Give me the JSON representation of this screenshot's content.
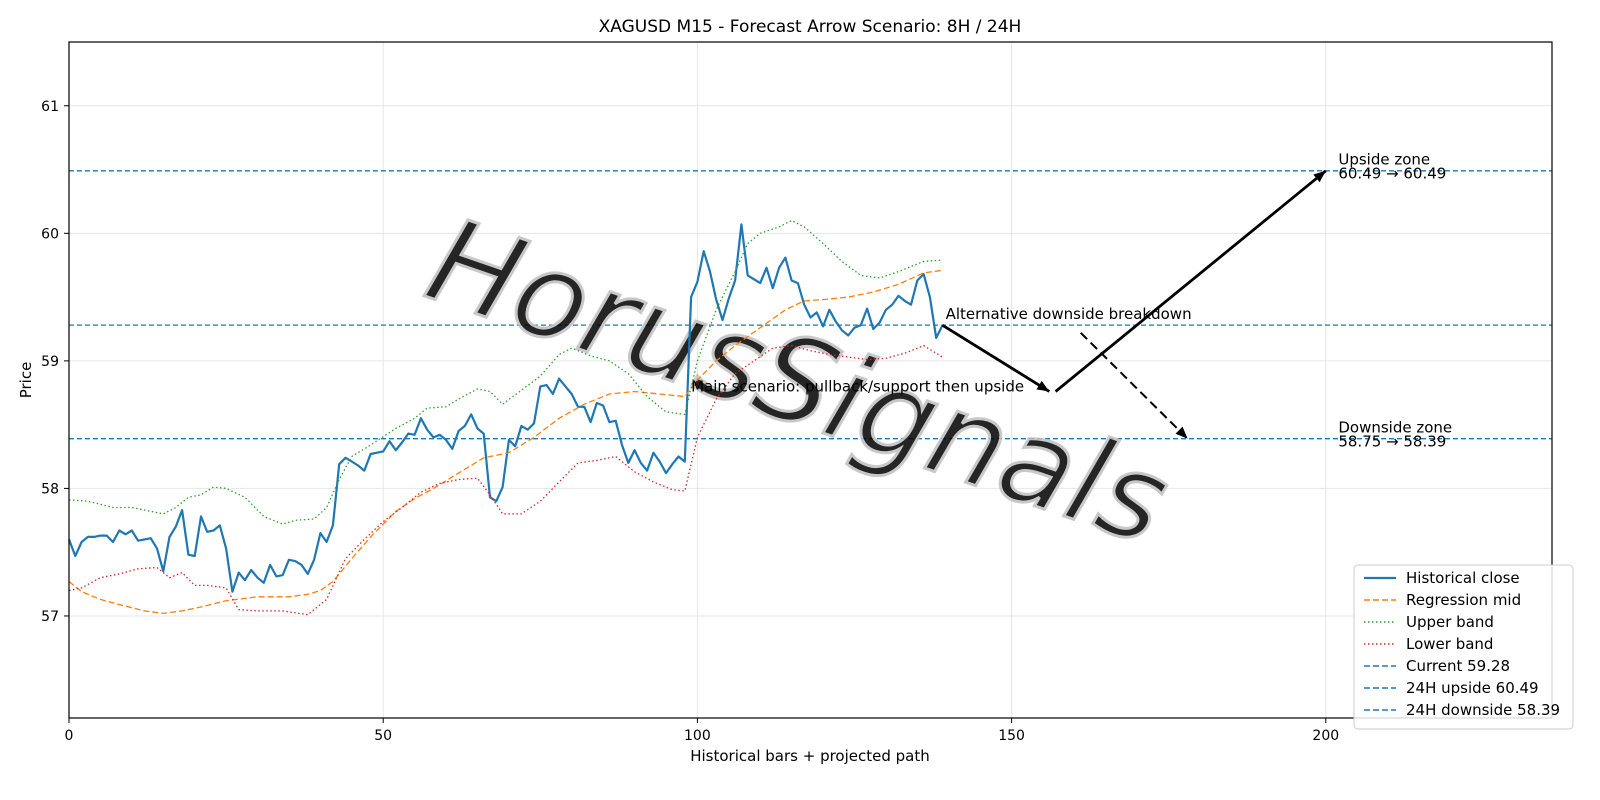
{
  "chart_data": {
    "type": "line",
    "title": "XAGUSD M15 - Forecast Arrow Scenario: 8H / 24H",
    "xlabel": "Historical bars + projected path",
    "ylabel": "Price",
    "xlim": [
      0,
      236
    ],
    "ylim": [
      56.2,
      61.5
    ],
    "xticks": [
      0,
      50,
      100,
      150,
      200
    ],
    "yticks": [
      57,
      58,
      59,
      60,
      61
    ],
    "grid": true,
    "watermark": "HorusSignals",
    "legend_position": "lower-right",
    "colors": {
      "close": "#1f77b4",
      "mid": "#ff7f0e",
      "upper": "#2ca02c",
      "lower": "#d62728",
      "hline": "#1f77b4",
      "arrow": "#000000"
    },
    "series": [
      {
        "name": "Historical close",
        "style": "solid",
        "points": [
          [
            0,
            57.6
          ],
          [
            1,
            57.47
          ],
          [
            2,
            57.58
          ],
          [
            3,
            57.62
          ],
          [
            4,
            57.62
          ],
          [
            5,
            57.63
          ],
          [
            6,
            57.63
          ],
          [
            7,
            57.58
          ],
          [
            8,
            57.67
          ],
          [
            9,
            57.64
          ],
          [
            10,
            57.67
          ],
          [
            11,
            57.59
          ],
          [
            12,
            57.6
          ],
          [
            13,
            57.61
          ],
          [
            14,
            57.53
          ],
          [
            15,
            57.35
          ],
          [
            16,
            57.62
          ],
          [
            17,
            57.7
          ],
          [
            18,
            57.83
          ],
          [
            19,
            57.48
          ],
          [
            20,
            57.47
          ],
          [
            21,
            57.78
          ],
          [
            22,
            57.66
          ],
          [
            23,
            57.67
          ],
          [
            24,
            57.71
          ],
          [
            25,
            57.53
          ],
          [
            26,
            57.19
          ],
          [
            27,
            57.34
          ],
          [
            28,
            57.28
          ],
          [
            29,
            57.36
          ],
          [
            30,
            57.3
          ],
          [
            31,
            57.26
          ],
          [
            32,
            57.4
          ],
          [
            33,
            57.31
          ],
          [
            34,
            57.32
          ],
          [
            35,
            57.44
          ],
          [
            36,
            57.43
          ],
          [
            37,
            57.4
          ],
          [
            38,
            57.33
          ],
          [
            39,
            57.44
          ],
          [
            40,
            57.65
          ],
          [
            41,
            57.58
          ],
          [
            42,
            57.71
          ],
          [
            43,
            58.19
          ],
          [
            44,
            58.24
          ],
          [
            45,
            58.21
          ],
          [
            46,
            58.18
          ],
          [
            47,
            58.14
          ],
          [
            48,
            58.27
          ],
          [
            49,
            58.28
          ],
          [
            50,
            58.29
          ],
          [
            51,
            58.37
          ],
          [
            52,
            58.3
          ],
          [
            53,
            58.36
          ],
          [
            54,
            58.43
          ],
          [
            55,
            58.42
          ],
          [
            56,
            58.55
          ],
          [
            57,
            58.46
          ],
          [
            58,
            58.4
          ],
          [
            59,
            58.42
          ],
          [
            60,
            58.38
          ],
          [
            61,
            58.31
          ],
          [
            62,
            58.45
          ],
          [
            63,
            58.49
          ],
          [
            64,
            58.58
          ],
          [
            65,
            58.47
          ],
          [
            66,
            58.43
          ],
          [
            67,
            57.93
          ],
          [
            68,
            57.9
          ],
          [
            69,
            58.01
          ],
          [
            70,
            58.38
          ],
          [
            71,
            58.33
          ],
          [
            72,
            58.49
          ],
          [
            73,
            58.46
          ],
          [
            74,
            58.51
          ],
          [
            75,
            58.8
          ],
          [
            76,
            58.81
          ],
          [
            77,
            58.74
          ],
          [
            78,
            58.86
          ],
          [
            79,
            58.8
          ],
          [
            80,
            58.74
          ],
          [
            81,
            58.64
          ],
          [
            82,
            58.64
          ],
          [
            83,
            58.52
          ],
          [
            84,
            58.67
          ],
          [
            85,
            58.65
          ],
          [
            86,
            58.52
          ],
          [
            87,
            58.53
          ],
          [
            88,
            58.34
          ],
          [
            89,
            58.2
          ],
          [
            90,
            58.3
          ],
          [
            91,
            58.2
          ],
          [
            92,
            58.14
          ],
          [
            93,
            58.28
          ],
          [
            94,
            58.21
          ],
          [
            95,
            58.12
          ],
          [
            96,
            58.19
          ],
          [
            97,
            58.25
          ],
          [
            98,
            58.21
          ],
          [
            99,
            59.5
          ],
          [
            100,
            59.62
          ],
          [
            101,
            59.86
          ],
          [
            102,
            59.7
          ],
          [
            103,
            59.48
          ],
          [
            104,
            59.32
          ],
          [
            105,
            59.49
          ],
          [
            106,
            59.63
          ],
          [
            107,
            60.07
          ],
          [
            108,
            59.67
          ],
          [
            109,
            59.64
          ],
          [
            110,
            59.61
          ],
          [
            111,
            59.73
          ],
          [
            112,
            59.57
          ],
          [
            113,
            59.73
          ],
          [
            114,
            59.81
          ],
          [
            115,
            59.63
          ],
          [
            116,
            59.61
          ],
          [
            117,
            59.44
          ],
          [
            118,
            59.34
          ],
          [
            119,
            59.38
          ],
          [
            120,
            59.27
          ],
          [
            121,
            59.4
          ],
          [
            122,
            59.31
          ],
          [
            123,
            59.24
          ],
          [
            124,
            59.2
          ],
          [
            125,
            59.26
          ],
          [
            126,
            59.28
          ],
          [
            127,
            59.41
          ],
          [
            128,
            59.25
          ],
          [
            129,
            59.3
          ],
          [
            130,
            59.4
          ],
          [
            131,
            59.44
          ],
          [
            132,
            59.51
          ],
          [
            133,
            59.47
          ],
          [
            134,
            59.44
          ],
          [
            135,
            59.63
          ],
          [
            136,
            59.68
          ],
          [
            137,
            59.5
          ],
          [
            138,
            59.18
          ],
          [
            139,
            59.28
          ]
        ]
      },
      {
        "name": "Regression mid",
        "style": "dashed",
        "points": [
          [
            0,
            57.27
          ],
          [
            2,
            57.19
          ],
          [
            5,
            57.13
          ],
          [
            8,
            57.09
          ],
          [
            12,
            57.04
          ],
          [
            15,
            57.02
          ],
          [
            18,
            57.04
          ],
          [
            21,
            57.07
          ],
          [
            25,
            57.12
          ],
          [
            30,
            57.15
          ],
          [
            35,
            57.15
          ],
          [
            38,
            57.17
          ],
          [
            40,
            57.2
          ],
          [
            42,
            57.27
          ],
          [
            45,
            57.45
          ],
          [
            48,
            57.62
          ],
          [
            52,
            57.82
          ],
          [
            55,
            57.92
          ],
          [
            58,
            58.0
          ],
          [
            62,
            58.12
          ],
          [
            66,
            58.24
          ],
          [
            70,
            58.28
          ],
          [
            74,
            58.4
          ],
          [
            78,
            58.55
          ],
          [
            82,
            58.66
          ],
          [
            86,
            58.74
          ],
          [
            90,
            58.76
          ],
          [
            94,
            58.74
          ],
          [
            98,
            58.72
          ],
          [
            100,
            58.85
          ],
          [
            103,
            59.0
          ],
          [
            106,
            59.12
          ],
          [
            110,
            59.26
          ],
          [
            114,
            59.4
          ],
          [
            117,
            59.47
          ],
          [
            120,
            59.48
          ],
          [
            124,
            59.5
          ],
          [
            128,
            59.54
          ],
          [
            132,
            59.6
          ],
          [
            136,
            59.69
          ],
          [
            139,
            59.71
          ]
        ]
      },
      {
        "name": "Upper band",
        "style": "dotted",
        "points": [
          [
            0,
            57.91
          ],
          [
            3,
            57.9
          ],
          [
            7,
            57.85
          ],
          [
            10,
            57.85
          ],
          [
            15,
            57.8
          ],
          [
            17,
            57.85
          ],
          [
            19,
            57.93
          ],
          [
            21,
            57.95
          ],
          [
            23,
            58.01
          ],
          [
            25,
            58.0
          ],
          [
            28,
            57.93
          ],
          [
            31,
            57.78
          ],
          [
            34,
            57.72
          ],
          [
            36,
            57.75
          ],
          [
            39,
            57.76
          ],
          [
            41,
            57.85
          ],
          [
            43,
            58.07
          ],
          [
            45,
            58.25
          ],
          [
            48,
            58.34
          ],
          [
            52,
            58.47
          ],
          [
            55,
            58.55
          ],
          [
            57,
            58.63
          ],
          [
            60,
            58.64
          ],
          [
            62,
            58.7
          ],
          [
            65,
            58.78
          ],
          [
            67,
            58.76
          ],
          [
            69,
            58.66
          ],
          [
            72,
            58.77
          ],
          [
            75,
            58.88
          ],
          [
            78,
            59.05
          ],
          [
            80,
            59.1
          ],
          [
            83,
            59.04
          ],
          [
            86,
            59.0
          ],
          [
            89,
            58.9
          ],
          [
            92,
            58.72
          ],
          [
            95,
            58.6
          ],
          [
            98,
            58.58
          ],
          [
            100,
            59.0
          ],
          [
            103,
            59.4
          ],
          [
            106,
            59.7
          ],
          [
            108,
            59.92
          ],
          [
            110,
            60.0
          ],
          [
            113,
            60.05
          ],
          [
            115,
            60.1
          ],
          [
            117,
            60.05
          ],
          [
            120,
            59.92
          ],
          [
            123,
            59.78
          ],
          [
            126,
            59.67
          ],
          [
            129,
            59.65
          ],
          [
            132,
            59.7
          ],
          [
            136,
            59.78
          ],
          [
            139,
            59.79
          ]
        ]
      },
      {
        "name": "Lower band",
        "style": "dotted",
        "points": [
          [
            0,
            57.2
          ],
          [
            2,
            57.22
          ],
          [
            5,
            57.3
          ],
          [
            8,
            57.33
          ],
          [
            11,
            57.37
          ],
          [
            14,
            57.38
          ],
          [
            16,
            57.3
          ],
          [
            18,
            57.34
          ],
          [
            20,
            57.24
          ],
          [
            22,
            57.24
          ],
          [
            25,
            57.22
          ],
          [
            27,
            57.05
          ],
          [
            30,
            57.04
          ],
          [
            34,
            57.04
          ],
          [
            38,
            57.01
          ],
          [
            41,
            57.13
          ],
          [
            44,
            57.45
          ],
          [
            47,
            57.6
          ],
          [
            50,
            57.74
          ],
          [
            53,
            57.85
          ],
          [
            56,
            57.97
          ],
          [
            59,
            58.04
          ],
          [
            62,
            58.07
          ],
          [
            65,
            58.08
          ],
          [
            67,
            57.95
          ],
          [
            69,
            57.8
          ],
          [
            72,
            57.8
          ],
          [
            75,
            57.9
          ],
          [
            78,
            58.05
          ],
          [
            81,
            58.2
          ],
          [
            84,
            58.22
          ],
          [
            87,
            58.25
          ],
          [
            90,
            58.13
          ],
          [
            93,
            58.05
          ],
          [
            96,
            57.99
          ],
          [
            98,
            57.98
          ],
          [
            100,
            58.4
          ],
          [
            103,
            58.7
          ],
          [
            106,
            58.9
          ],
          [
            109,
            59.0
          ],
          [
            112,
            59.1
          ],
          [
            115,
            59.12
          ],
          [
            118,
            59.08
          ],
          [
            121,
            59.05
          ],
          [
            124,
            59.03
          ],
          [
            127,
            59.01
          ],
          [
            130,
            59.02
          ],
          [
            133,
            59.06
          ],
          [
            136,
            59.12
          ],
          [
            139,
            59.03
          ]
        ]
      }
    ],
    "hlines": [
      {
        "name": "Current 59.28",
        "y": 59.28
      },
      {
        "name": "24H upside 60.49",
        "y": 60.49
      },
      {
        "name": "24H downside 58.39",
        "y": 58.39
      }
    ],
    "arrows": [
      {
        "name": "main-1",
        "style": "solid",
        "from": [
          139,
          59.28
        ],
        "to": [
          156,
          58.76
        ]
      },
      {
        "name": "main-2",
        "style": "solid",
        "from": [
          157,
          58.76
        ],
        "to": [
          200,
          60.49
        ]
      },
      {
        "name": "alt",
        "style": "dashed",
        "from": [
          161,
          59.22
        ],
        "to": [
          178,
          58.39
        ]
      }
    ],
    "annotations": [
      {
        "text": "Alternative downside breakdown",
        "x": 139.5,
        "y": 59.33
      },
      {
        "text": "Main scenario: pullback/support then upside",
        "x": 99,
        "y": 58.76
      }
    ],
    "zone_labels": [
      {
        "title": "Upside zone",
        "range": "60.49 → 60.49",
        "x": 202,
        "y_title": 60.54,
        "y_range": 60.43
      },
      {
        "title": "Downside zone",
        "range": "58.75 → 58.39",
        "x": 202,
        "y_title": 58.44,
        "y_range": 58.33
      }
    ]
  }
}
